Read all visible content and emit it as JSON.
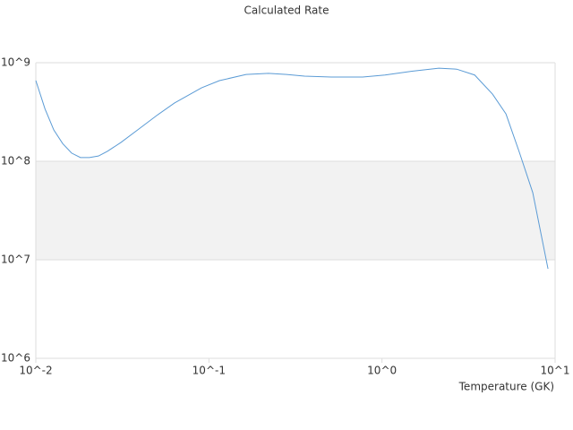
{
  "chart_data": {
    "type": "line",
    "title": "Calculated Rate",
    "x_label": "Temperature (GK)",
    "log_x": true,
    "log_y": true,
    "grid": true,
    "band_color": "#f2f2f2",
    "xlim": [
      0.01,
      10
    ],
    "ylim": [
      1000000,
      1000000000
    ],
    "xticks": [
      {
        "value": 0.01,
        "label": "10^-2"
      },
      {
        "value": 0.1,
        "label": "10^-1"
      },
      {
        "value": 1,
        "label": "10^0"
      },
      {
        "value": 10,
        "label": "10^1"
      }
    ],
    "yticks": [
      {
        "value": 1000000,
        "label": "10^6"
      },
      {
        "value": 10000000,
        "label": "10^7"
      },
      {
        "value": 100000000,
        "label": "10^8"
      },
      {
        "value": 1000000000,
        "label": "10^9"
      }
    ],
    "series": [
      {
        "color": "#5b9bd5",
        "x": [
          0.01,
          0.0113,
          0.0127,
          0.0143,
          0.0161,
          0.0181,
          0.0204,
          0.023,
          0.0259,
          0.031,
          0.0393,
          0.0499,
          0.0633,
          0.0906,
          0.115,
          0.164,
          0.221,
          0.281,
          0.357,
          0.509,
          0.773,
          1.04,
          1.49,
          2.13,
          2.7,
          3.43,
          4.35,
          5.2,
          6.22,
          7.43,
          9.1
        ],
        "values": [
          660000000,
          340000000,
          208000000,
          151000000,
          121000000,
          109000000,
          109000000,
          113000000,
          126000000,
          155000000,
          212000000,
          291000000,
          390000000,
          556000000,
          658000000,
          760000000,
          780000000,
          760000000,
          730000000,
          715000000,
          715000000,
          750000000,
          820000000,
          880000000,
          860000000,
          750000000,
          480000000,
          303000000,
          123000000,
          48000000,
          8100000
        ]
      }
    ]
  }
}
